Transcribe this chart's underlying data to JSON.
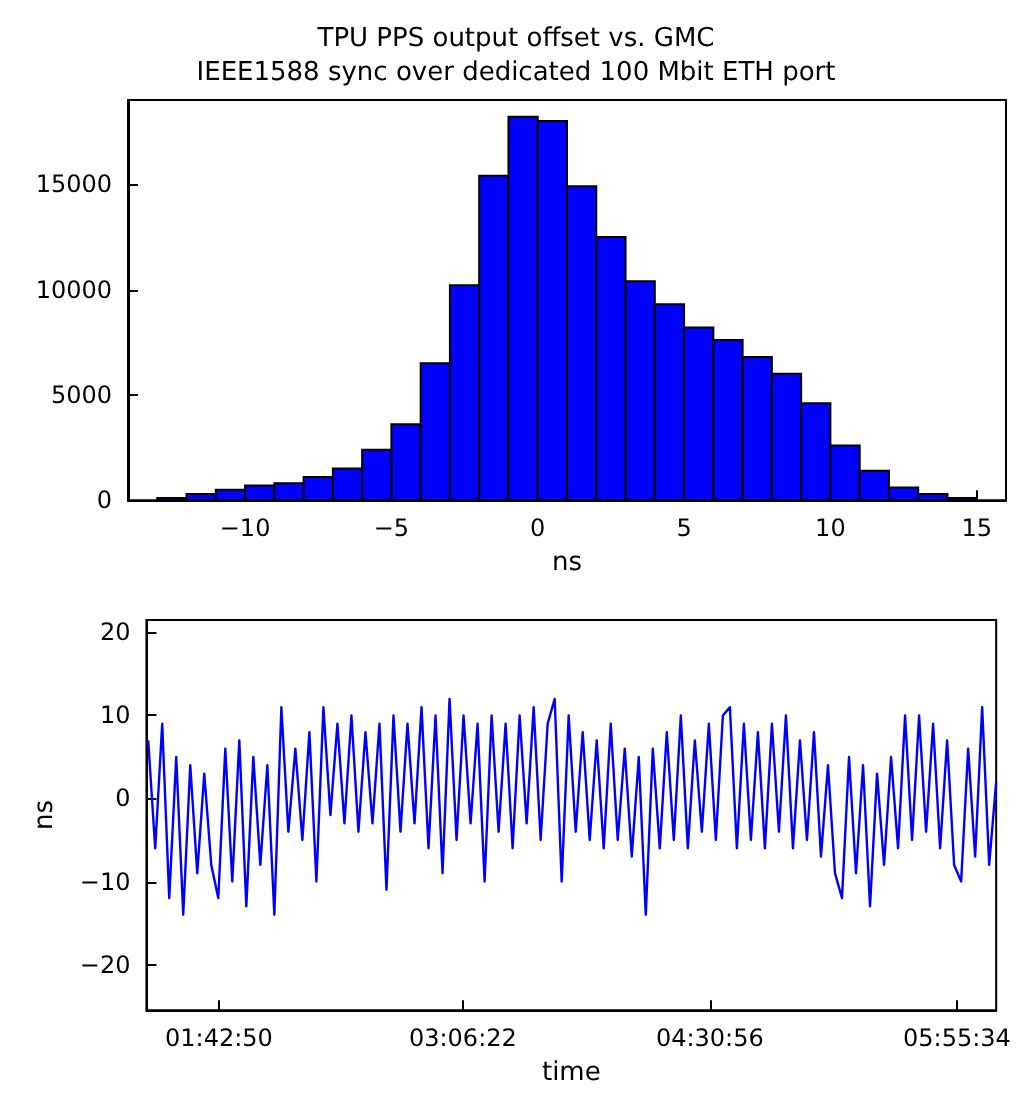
{
  "chart_data": [
    {
      "type": "histogram",
      "title": "TPU PPS output offset vs. GMC",
      "subtitle": "IEEE1588 sync over dedicated 100 Mbit ETH port",
      "xlabel": "ns",
      "color": "#0000ff",
      "bins": [
        -13,
        -12,
        -11,
        -10,
        -9,
        -8,
        -7,
        -6,
        -5,
        -4,
        -3,
        -2,
        -1,
        0,
        1,
        2,
        3,
        4,
        5,
        6,
        7,
        8,
        9,
        10,
        11,
        12,
        13,
        14,
        15
      ],
      "values": [
        100,
        300,
        500,
        700,
        800,
        1100,
        1500,
        2400,
        3600,
        6500,
        10200,
        15400,
        18200,
        18000,
        14900,
        12500,
        10400,
        9300,
        8200,
        7600,
        6800,
        6000,
        4600,
        2600,
        1400,
        600,
        300,
        100
      ],
      "xlim": [
        -14,
        16
      ],
      "xticks": [
        -10,
        -5,
        0,
        5,
        10,
        15
      ],
      "ylim": [
        0,
        19000
      ],
      "yticks": [
        0,
        5000,
        10000,
        15000
      ],
      "grid": false
    },
    {
      "type": "line",
      "xlabel": "time",
      "ylabel": "ns",
      "marker": "none",
      "line_style": "solid",
      "xlim": [
        1.3,
        6.15
      ],
      "xticks": [
        {
          "value": 1.71389,
          "label": "01:42:50"
        },
        {
          "value": 3.10611,
          "label": "03:06:22"
        },
        {
          "value": 4.51556,
          "label": "04:30:56"
        },
        {
          "value": 5.92611,
          "label": "05:55:34"
        }
      ],
      "ylim": [
        -25.5,
        21.5
      ],
      "yticks": [
        -20,
        -10,
        0,
        10,
        20
      ],
      "grid": false,
      "series": [
        {
          "color": "#0000ff",
          "x": [
            1.31,
            1.35,
            1.39,
            1.43,
            1.47,
            1.51,
            1.55,
            1.59,
            1.63,
            1.67,
            1.71,
            1.75,
            1.79,
            1.83,
            1.87,
            1.91,
            1.95,
            1.99,
            2.03,
            2.07,
            2.11,
            2.15,
            2.19,
            2.23,
            2.27,
            2.31,
            2.35,
            2.39,
            2.43,
            2.47,
            2.51,
            2.55,
            2.59,
            2.63,
            2.67,
            2.71,
            2.75,
            2.79,
            2.83,
            2.87,
            2.91,
            2.95,
            2.99,
            3.03,
            3.07,
            3.11,
            3.15,
            3.19,
            3.23,
            3.27,
            3.31,
            3.35,
            3.39,
            3.43,
            3.47,
            3.51,
            3.55,
            3.59,
            3.63,
            3.67,
            3.71,
            3.75,
            3.79,
            3.83,
            3.87,
            3.91,
            3.95,
            3.99,
            4.03,
            4.07,
            4.11,
            4.15,
            4.19,
            4.23,
            4.27,
            4.31,
            4.35,
            4.39,
            4.43,
            4.47,
            4.51,
            4.55,
            4.59,
            4.63,
            4.67,
            4.71,
            4.75,
            4.79,
            4.83,
            4.87,
            4.91,
            4.95,
            4.99,
            5.03,
            5.07,
            5.11,
            5.15,
            5.19,
            5.23,
            5.27,
            5.31,
            5.35,
            5.39,
            5.43,
            5.47,
            5.51,
            5.55,
            5.59,
            5.63,
            5.67,
            5.71,
            5.75,
            5.79,
            5.83,
            5.87,
            5.91,
            5.95,
            5.99,
            6.03,
            6.07,
            6.11,
            6.15
          ],
          "values": [
            7,
            -6,
            9,
            -12,
            5,
            -14,
            4,
            -9,
            3,
            -8,
            -12,
            6,
            -10,
            7,
            -13,
            5,
            -8,
            4,
            -14,
            11,
            -4,
            6,
            -5,
            8,
            -10,
            11,
            -2,
            9,
            -3,
            10,
            -4,
            8,
            -3,
            9,
            -11,
            10,
            -4,
            9,
            -3,
            11,
            -6,
            10,
            -9,
            12,
            -5,
            10,
            -3,
            9,
            -10,
            10,
            -4,
            9,
            -6,
            10,
            -3,
            11,
            -5,
            9,
            12,
            -10,
            10,
            -4,
            8,
            -5,
            7,
            -6,
            9,
            -5,
            6,
            -7,
            5,
            -14,
            6,
            -6,
            8,
            -5,
            10,
            -6,
            7,
            -4,
            9,
            -5,
            10,
            11,
            -6,
            9,
            -5,
            8,
            -6,
            9,
            -4,
            10,
            -6,
            7,
            -5,
            8,
            -7,
            4,
            -9,
            -12,
            5,
            -9,
            4,
            -13,
            3,
            -8,
            5,
            -6,
            10,
            -5,
            10,
            -4,
            9,
            -6,
            7,
            -8,
            -10,
            6,
            -7,
            11,
            -8,
            2
          ]
        }
      ]
    }
  ]
}
